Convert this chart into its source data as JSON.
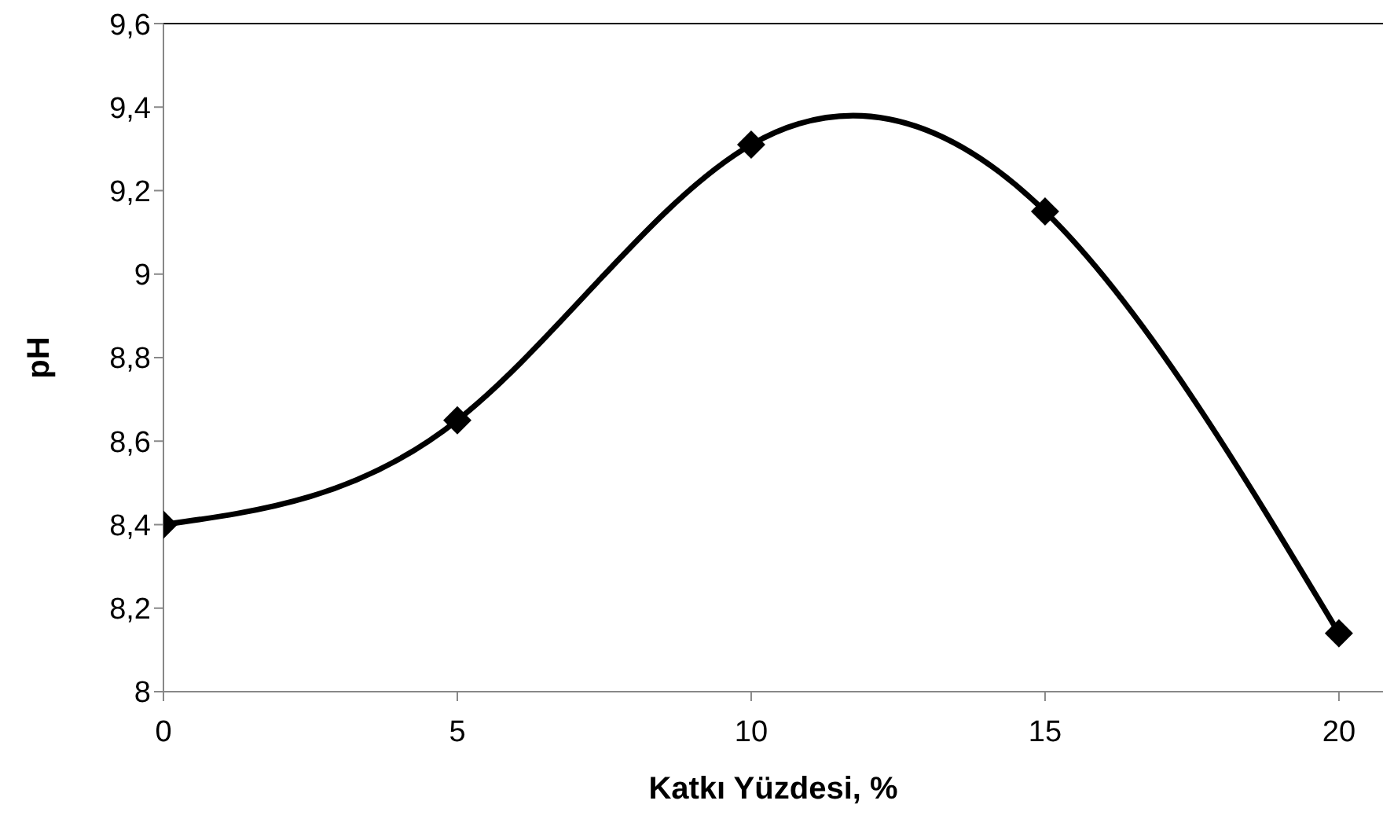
{
  "chart_data": {
    "type": "line",
    "xlabel": "Katkı Yüzdesi, %",
    "ylabel": "pH",
    "x": [
      0,
      5,
      10,
      15,
      20
    ],
    "series": [
      {
        "color": "#000000",
        "values": [
          8.4,
          8.65,
          9.31,
          9.15,
          8.14
        ]
      }
    ],
    "xlim": [
      0,
      20.75
    ],
    "xticks": [
      0,
      5,
      10,
      15,
      20
    ],
    "ylim": [
      8,
      9.6
    ],
    "yticks": [
      8,
      {
        "value": 8.2,
        "label": "8,2"
      },
      {
        "value": 8.4,
        "label": "8,4"
      },
      {
        "value": 8.6,
        "label": "8,6"
      },
      {
        "value": 8.8,
        "label": "8,8"
      },
      9,
      {
        "value": 9.2,
        "label": "9,2"
      },
      {
        "value": 9.4,
        "label": "9,4"
      },
      {
        "value": 9.6,
        "label": "9,6"
      }
    ],
    "marker": "diamond",
    "line_style": "solid",
    "grid": false,
    "legend": false
  }
}
